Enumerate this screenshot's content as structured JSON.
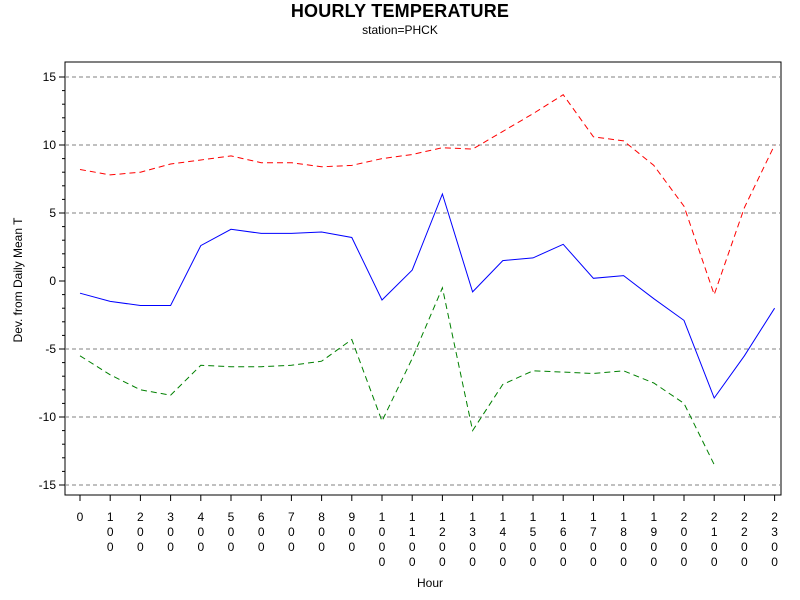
{
  "chart_data": {
    "type": "line",
    "title": "HOURLY TEMPERATURE",
    "subtitle": "station=PHCK",
    "xlabel": "Hour",
    "ylabel": "Dev. from Daily Mean T",
    "ylim": [
      -15,
      15
    ],
    "yticks": [
      -15,
      -10,
      -5,
      0,
      5,
      10,
      15
    ],
    "grid": "dashed horizontal at major y ticks",
    "x": [
      0,
      100,
      200,
      300,
      400,
      500,
      600,
      700,
      800,
      900,
      1000,
      1100,
      1200,
      1300,
      1400,
      1500,
      1600,
      1700,
      1800,
      1900,
      2000,
      2100,
      2200,
      2300
    ],
    "x_tick_labels": [
      "0",
      "100",
      "200",
      "300",
      "400",
      "500",
      "600",
      "700",
      "800",
      "900",
      "1000",
      "1100",
      "1200",
      "1300",
      "1400",
      "1500",
      "1600",
      "1700",
      "1800",
      "1900",
      "2000",
      "2100",
      "2200",
      "2300"
    ],
    "series": [
      {
        "color": "#ff0000",
        "dash": "dashed",
        "values": [
          8.2,
          7.8,
          8.0,
          8.6,
          8.9,
          9.2,
          8.7,
          8.7,
          8.4,
          8.5,
          9.0,
          9.3,
          9.8,
          9.7,
          11.0,
          12.3,
          13.7,
          10.6,
          10.3,
          8.5,
          5.5,
          -1.0,
          5.4,
          10.0
        ]
      },
      {
        "color": "#0000ff",
        "dash": "solid",
        "values": [
          -0.9,
          -1.5,
          -1.8,
          -1.8,
          2.6,
          3.8,
          3.5,
          3.5,
          3.6,
          3.2,
          -1.4,
          0.8,
          6.4,
          -0.8,
          1.5,
          1.7,
          2.7,
          0.2,
          0.4,
          -1.3,
          -2.9,
          -8.6,
          -5.5,
          -2.0
        ]
      },
      {
        "color": "#008000",
        "dash": "dashed",
        "values": [
          -5.5,
          -6.9,
          -8.0,
          -8.4,
          -6.2,
          -6.3,
          -6.3,
          -6.2,
          -5.9,
          -4.3,
          -10.3,
          -5.7,
          -0.5,
          -11.0,
          -7.6,
          -6.6,
          -6.7,
          -6.8,
          -6.6,
          -7.5,
          -9.0,
          -13.5,
          null,
          null
        ]
      }
    ]
  }
}
